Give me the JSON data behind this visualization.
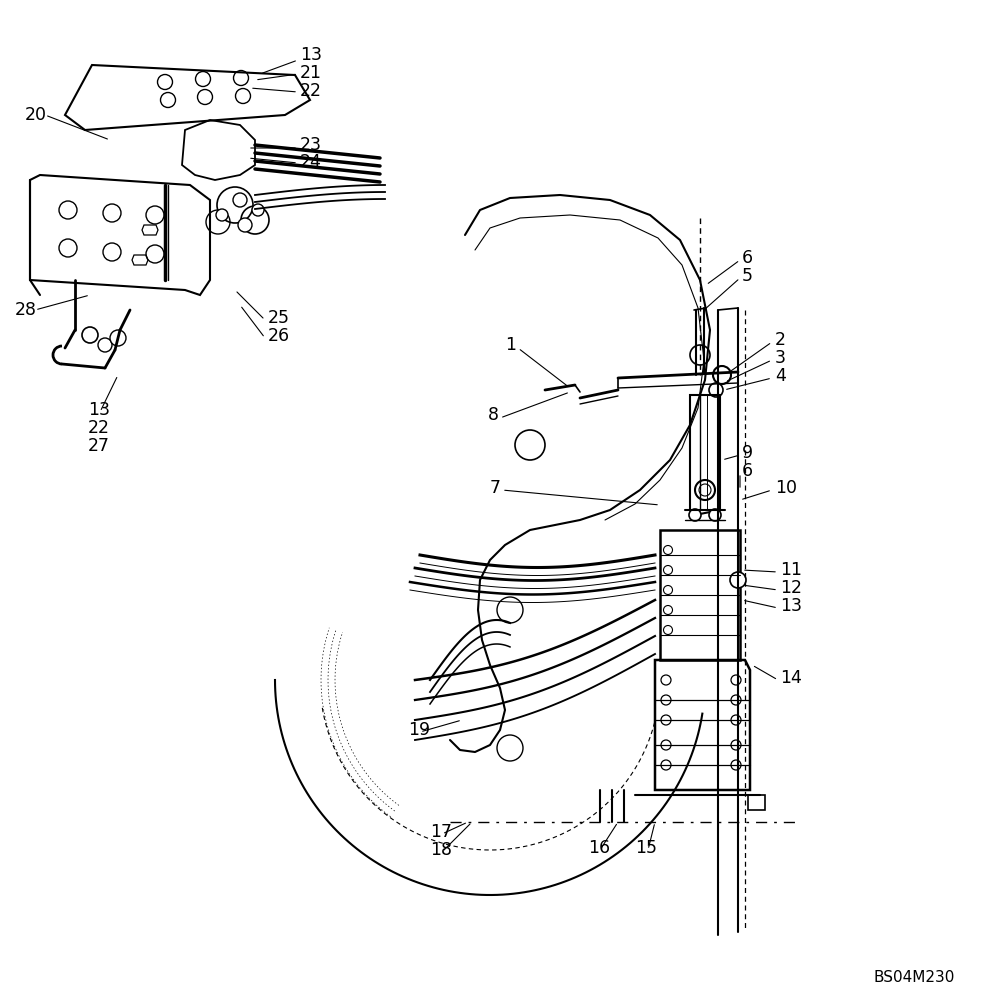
{
  "watermark": "BS04M230",
  "background_color": "#ffffff",
  "line_color": "#000000",
  "text_color": "#000000",
  "label_fontsize": 12.5,
  "watermark_fontsize": 11
}
